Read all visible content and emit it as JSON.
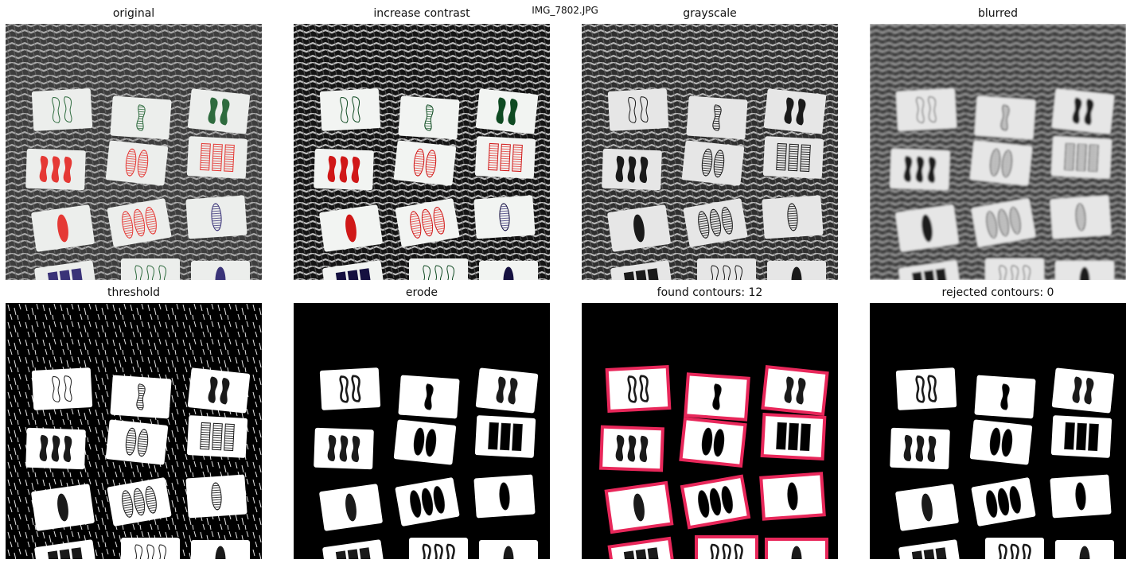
{
  "figure": {
    "title": "IMG_7802.JPG",
    "panels": [
      {
        "title": "original",
        "kind": "photo"
      },
      {
        "title": "increase contrast",
        "kind": "contrast"
      },
      {
        "title": "grayscale",
        "kind": "gray"
      },
      {
        "title": "blurred",
        "kind": "blur"
      },
      {
        "title": "threshold",
        "kind": "threshold"
      },
      {
        "title": "erode",
        "kind": "erode"
      },
      {
        "title": "found contours: 12",
        "kind": "contours"
      },
      {
        "title": "rejected contours: 0",
        "kind": "rejected"
      }
    ]
  },
  "colors": {
    "red": "#e53935",
    "green": "#2e6b3e",
    "purple": "#3a3378",
    "contour": "#e8275a",
    "weave_dark": "#2b2b2b",
    "weave_light": "#9a9a9a"
  },
  "cards": [
    {
      "color": "green",
      "shape": "squiggle",
      "count": 2,
      "fill": "empty"
    },
    {
      "color": "green",
      "shape": "squiggle",
      "count": 1,
      "fill": "striped"
    },
    {
      "color": "green",
      "shape": "squiggle",
      "count": 2,
      "fill": "solid"
    },
    {
      "color": "red",
      "shape": "squiggle",
      "count": 3,
      "fill": "solid"
    },
    {
      "color": "red",
      "shape": "oval",
      "count": 2,
      "fill": "striped"
    },
    {
      "color": "red",
      "shape": "rectangle",
      "count": 3,
      "fill": "striped"
    },
    {
      "color": "red",
      "shape": "oval",
      "count": 1,
      "fill": "solid"
    },
    {
      "color": "red",
      "shape": "oval",
      "count": 3,
      "fill": "striped"
    },
    {
      "color": "purple",
      "shape": "oval",
      "count": 1,
      "fill": "striped"
    },
    {
      "color": "purple",
      "shape": "rectangle",
      "count": 3,
      "fill": "solid"
    },
    {
      "color": "green",
      "shape": "squiggle",
      "count": 3,
      "fill": "empty"
    },
    {
      "color": "purple",
      "shape": "oval",
      "count": 1,
      "fill": "solid"
    }
  ]
}
